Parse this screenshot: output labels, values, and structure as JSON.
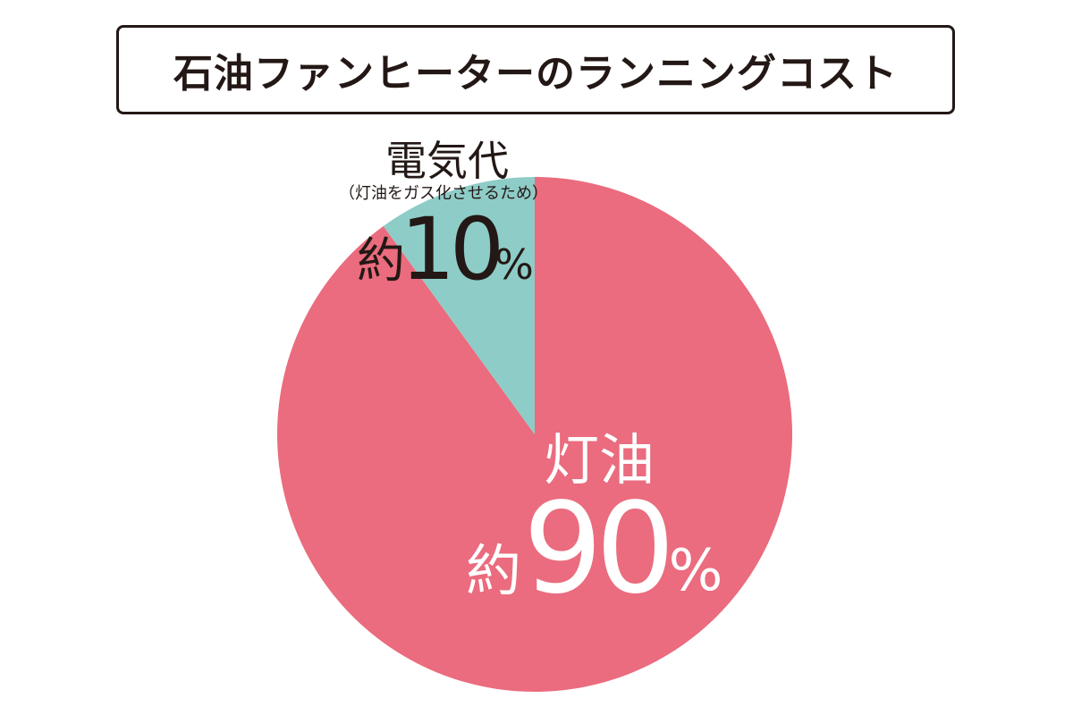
{
  "title": "石油ファンヒーターのランニングコスト",
  "colors": {
    "kerosene": "#EA6C7E",
    "electricity": "#8ECCC7",
    "dark_text": "#231815",
    "light_text": "#FFFFFF",
    "title_border": "#231815"
  },
  "chart_data": {
    "type": "pie",
    "title": "石油ファンヒーターのランニングコスト",
    "slices": [
      {
        "name": "灯油",
        "prefix": "約",
        "value": 90,
        "unit": "%",
        "note": "",
        "color": "#EA6C7E"
      },
      {
        "name": "電気代",
        "prefix": "約",
        "value": 10,
        "unit": "%",
        "note": "（灯油をガス化させるため）",
        "color": "#8ECCC7"
      }
    ]
  }
}
